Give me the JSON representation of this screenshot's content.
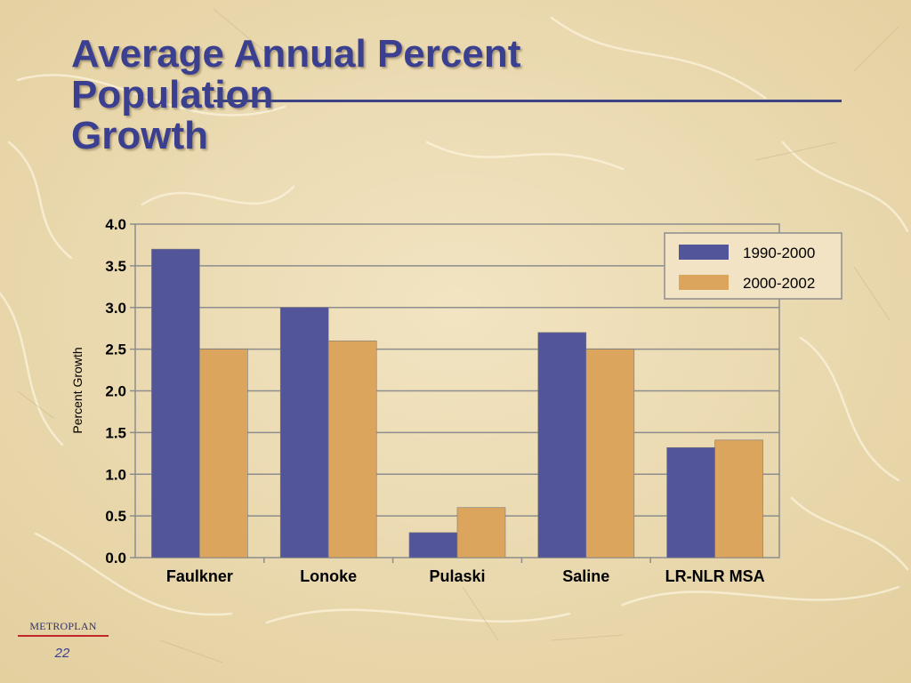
{
  "slide": {
    "title_lines": [
      "Average Annual Percent",
      "Population",
      "Growth"
    ],
    "footer_logo": "METROPLAN",
    "page_number": "22"
  },
  "colors": {
    "background": "#ecdcb4",
    "title": "#3a3f8f",
    "series_1": "#53559a",
    "series_2": "#dca55e"
  },
  "chart_data": {
    "type": "bar",
    "title": "",
    "xlabel": "",
    "ylabel": "Percent Growth",
    "ylim": [
      0,
      4.0
    ],
    "yticks": [
      0,
      0.5,
      1.0,
      1.5,
      2.0,
      2.5,
      3.0,
      3.5,
      4.0
    ],
    "ytick_labels": [
      "0.0",
      "0.5",
      "1.0",
      "1.5",
      "2.0",
      "2.5",
      "3.0",
      "3.5",
      "4.0"
    ],
    "grid": true,
    "legend": "top-right",
    "categories": [
      "Faulkner",
      "Lonoke",
      "Pulaski",
      "Saline",
      "LR-NLR MSA"
    ],
    "series": [
      {
        "name": "1990-2000",
        "values": [
          3.7,
          3.0,
          0.3,
          2.7,
          1.32
        ]
      },
      {
        "name": "2000-2002",
        "values": [
          2.5,
          2.6,
          0.6,
          2.5,
          1.41
        ]
      }
    ]
  }
}
